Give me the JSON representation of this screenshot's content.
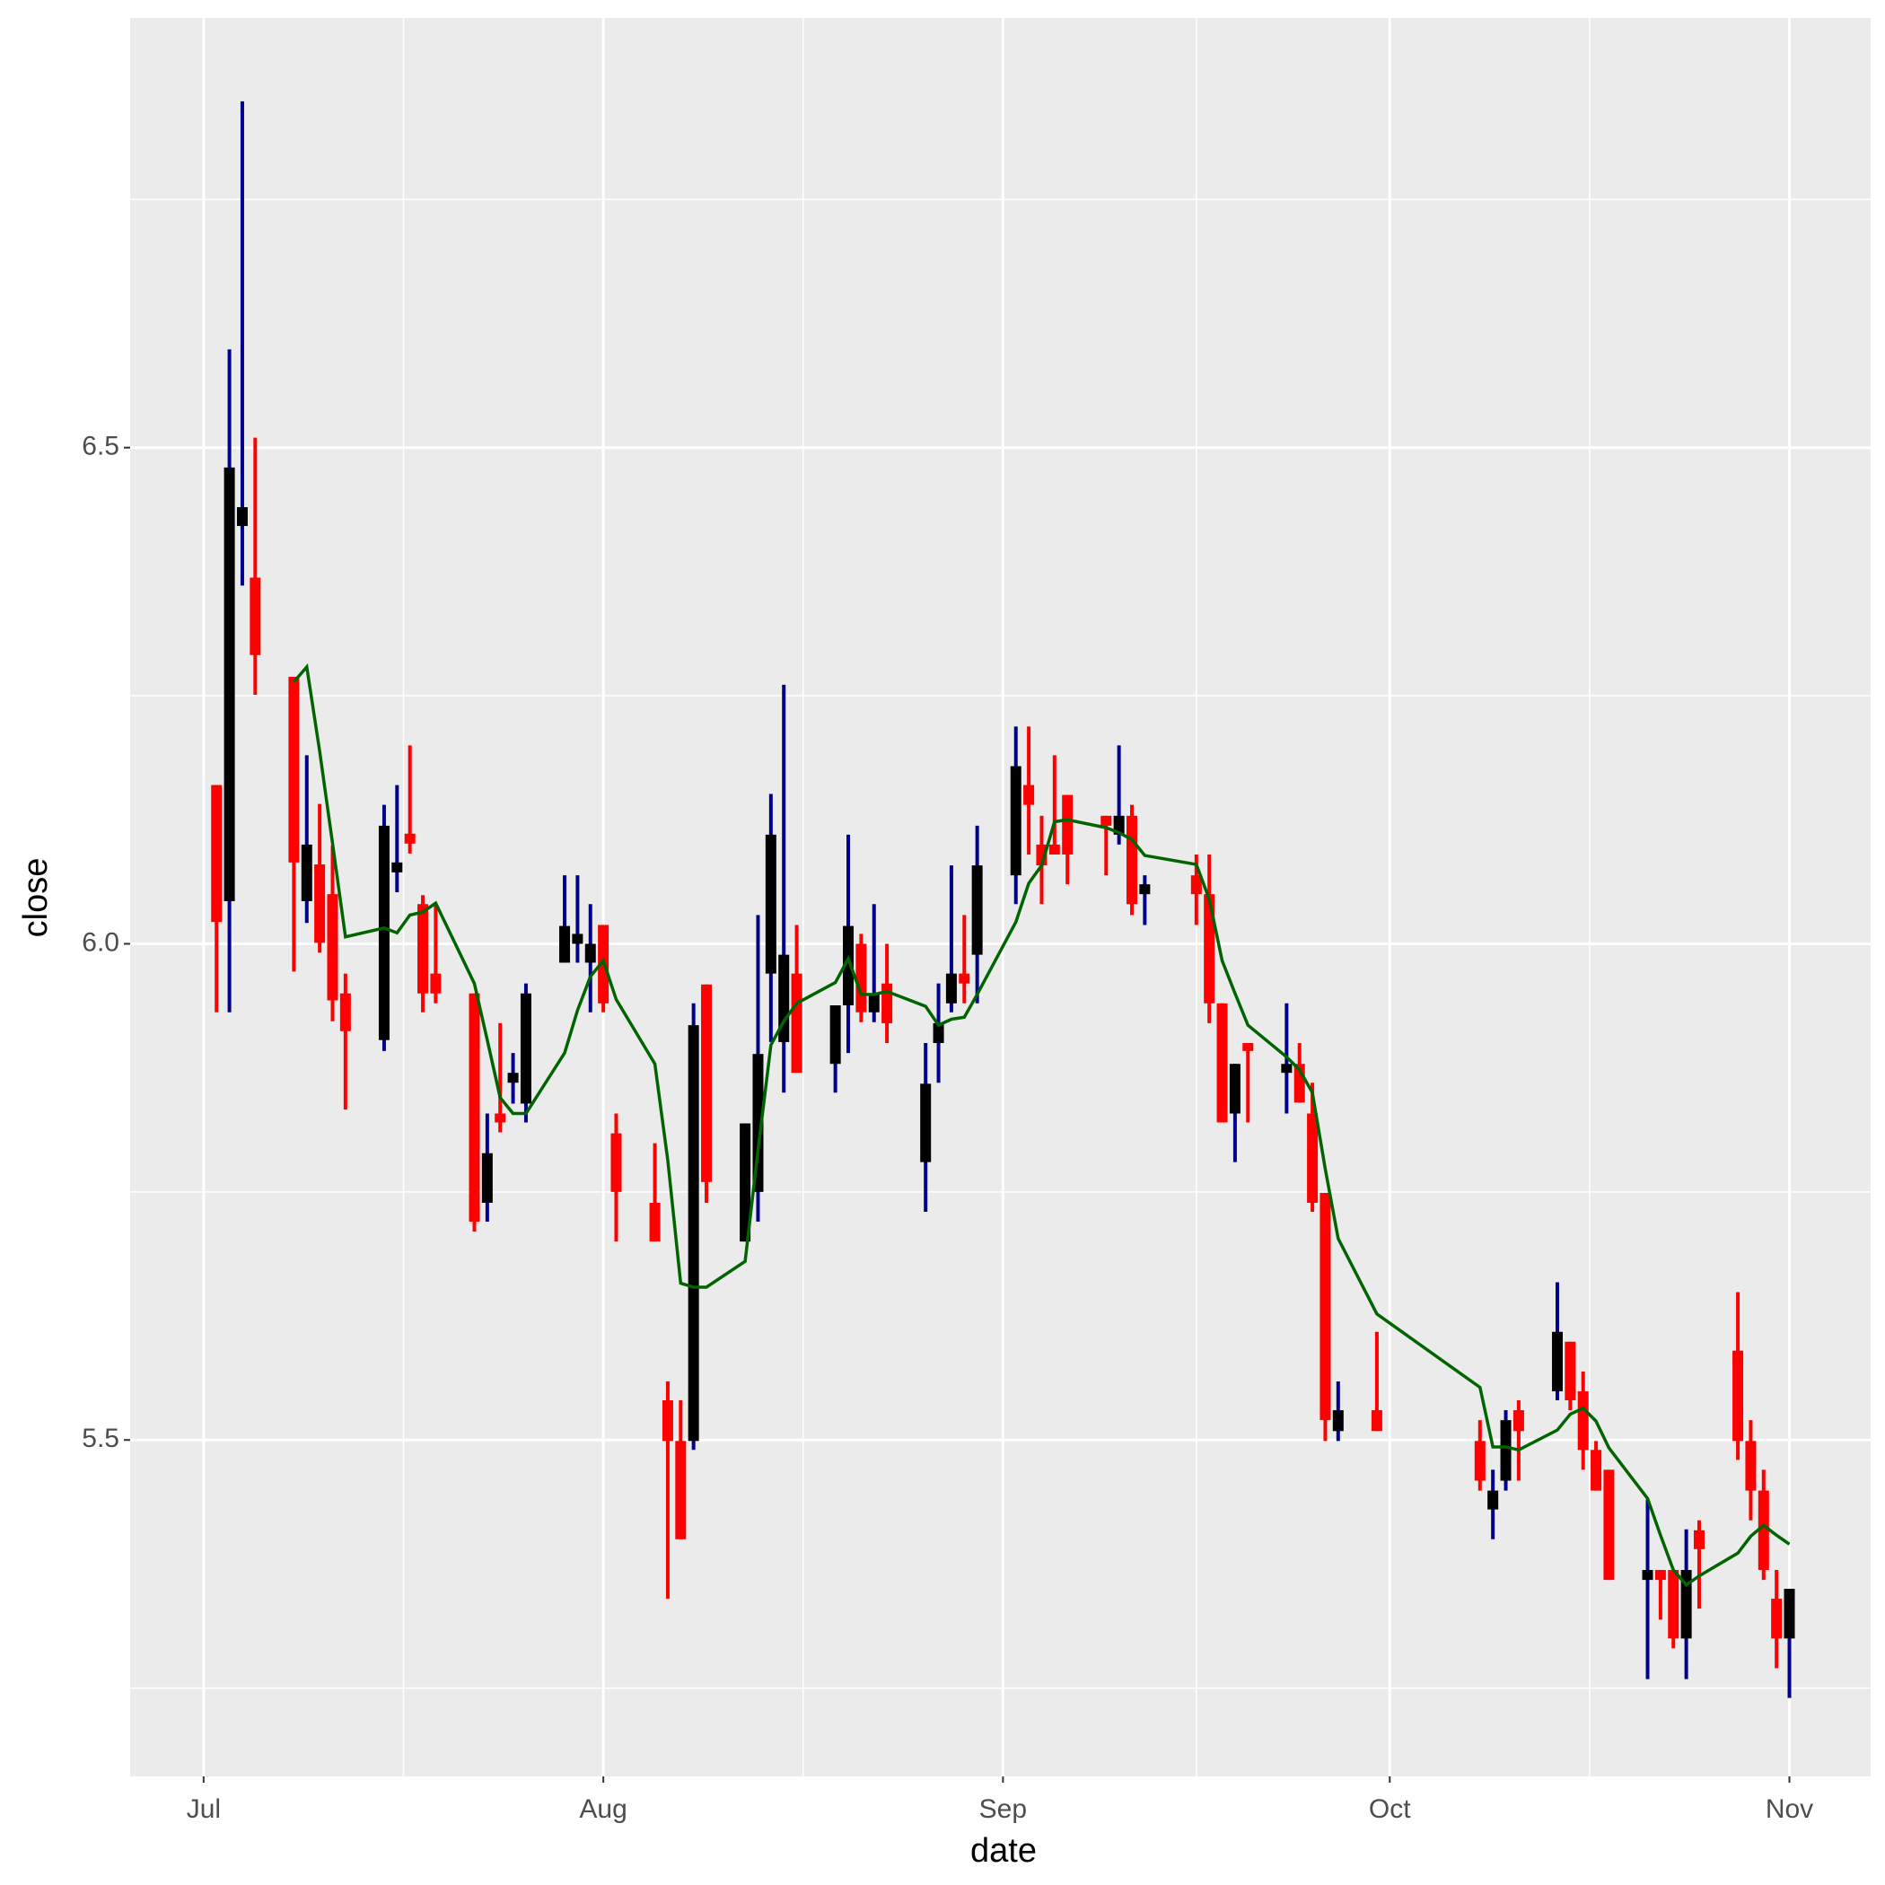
{
  "chart_data": {
    "type": "candlestick",
    "x_label": "date",
    "y_label": "close",
    "x": [
      1,
      2,
      3,
      4,
      7,
      8,
      9,
      10,
      11,
      14,
      15,
      16,
      17,
      18,
      21,
      22,
      23,
      24,
      25,
      28,
      29,
      30,
      31,
      32,
      35,
      36,
      37,
      38,
      39,
      42,
      43,
      44,
      45,
      46,
      49,
      50,
      51,
      52,
      53,
      56,
      57,
      58,
      59,
      60,
      63,
      64,
      65,
      66,
      67,
      70,
      71,
      72,
      73,
      77,
      78,
      79,
      80,
      81,
      84,
      85,
      86,
      87,
      88,
      91,
      99,
      100,
      101,
      102,
      105,
      106,
      107,
      108,
      109,
      112,
      113,
      114,
      115,
      116,
      119,
      120,
      121,
      122,
      123
    ],
    "open": [
      6.16,
      6.043,
      6.421,
      6.369,
      6.269,
      6.043,
      6.08,
      6.05,
      5.95,
      5.903,
      6.072,
      6.111,
      6.04,
      5.97,
      5.95,
      5.739,
      5.829,
      5.86,
      5.839,
      5.981,
      6.0,
      5.981,
      6.019,
      5.809,
      5.739,
      5.54,
      5.499,
      5.499,
      5.959,
      5.7,
      5.75,
      5.97,
      5.901,
      5.97,
      5.879,
      5.938,
      6.0,
      5.931,
      5.96,
      5.78,
      5.9,
      5.94,
      5.97,
      5.989,
      6.069,
      6.16,
      6.1,
      6.1,
      6.15,
      6.129,
      6.11,
      6.129,
      6.05,
      6.069,
      6.05,
      5.94,
      5.829,
      5.9,
      5.87,
      5.879,
      5.829,
      5.749,
      5.509,
      5.53,
      5.499,
      5.43,
      5.459,
      5.53,
      5.549,
      5.599,
      5.549,
      5.49,
      5.47,
      5.359,
      5.369,
      5.369,
      5.3,
      5.409,
      5.59,
      5.499,
      5.449,
      5.34,
      5.3
    ],
    "high": [
      6.16,
      6.599,
      6.849,
      6.51,
      6.269,
      6.19,
      6.141,
      6.099,
      5.97,
      6.14,
      6.16,
      6.2,
      6.049,
      6.04,
      5.95,
      5.829,
      5.92,
      5.89,
      5.96,
      6.069,
      6.069,
      6.04,
      6.019,
      5.829,
      5.799,
      5.559,
      5.54,
      5.94,
      5.959,
      5.819,
      6.029,
      6.151,
      6.261,
      6.019,
      5.938,
      6.11,
      6.01,
      6.04,
      6.0,
      5.9,
      5.96,
      6.079,
      6.029,
      6.119,
      6.219,
      6.219,
      6.129,
      6.19,
      6.15,
      6.129,
      6.2,
      6.14,
      6.069,
      6.09,
      6.09,
      5.94,
      5.879,
      5.9,
      5.94,
      5.9,
      5.86,
      5.749,
      5.559,
      5.609,
      5.52,
      5.47,
      5.53,
      5.54,
      5.659,
      5.599,
      5.569,
      5.499,
      5.47,
      5.44,
      5.369,
      5.369,
      5.41,
      5.419,
      5.649,
      5.52,
      5.47,
      5.369,
      5.35
    ],
    "low": [
      5.931,
      5.931,
      6.361,
      6.251,
      5.972,
      6.021,
      5.991,
      5.922,
      5.833,
      5.892,
      6.052,
      6.091,
      5.931,
      5.94,
      5.71,
      5.72,
      5.81,
      5.839,
      5.82,
      5.981,
      5.981,
      5.931,
      5.931,
      5.7,
      5.7,
      5.34,
      5.4,
      5.49,
      5.739,
      5.7,
      5.72,
      5.901,
      5.85,
      5.87,
      5.85,
      5.89,
      5.921,
      5.921,
      5.9,
      5.73,
      5.86,
      5.931,
      5.94,
      5.94,
      6.04,
      6.09,
      6.04,
      6.09,
      6.06,
      6.069,
      6.1,
      6.029,
      6.019,
      6.019,
      5.92,
      5.82,
      5.78,
      5.82,
      5.829,
      5.84,
      5.73,
      5.499,
      5.499,
      5.509,
      5.449,
      5.4,
      5.449,
      5.459,
      5.54,
      5.53,
      5.47,
      5.449,
      5.359,
      5.259,
      5.319,
      5.29,
      5.259,
      5.33,
      5.48,
      5.419,
      5.359,
      5.27,
      5.24
    ],
    "close": [
      6.022,
      6.48,
      6.44,
      6.291,
      6.082,
      6.1,
      6.001,
      5.943,
      5.912,
      6.119,
      6.082,
      6.101,
      5.95,
      5.95,
      5.72,
      5.789,
      5.82,
      5.87,
      5.95,
      6.018,
      6.01,
      6.0,
      5.94,
      5.75,
      5.7,
      5.499,
      5.4,
      5.918,
      5.76,
      5.819,
      5.889,
      6.11,
      5.989,
      5.87,
      5.938,
      6.018,
      5.931,
      5.95,
      5.92,
      5.859,
      5.92,
      5.97,
      5.96,
      6.079,
      6.179,
      6.14,
      6.079,
      6.09,
      6.09,
      6.119,
      6.129,
      6.04,
      6.06,
      6.05,
      5.94,
      5.82,
      5.879,
      5.892,
      5.879,
      5.84,
      5.739,
      5.52,
      5.53,
      5.509,
      5.459,
      5.449,
      5.52,
      5.509,
      5.609,
      5.54,
      5.49,
      5.449,
      5.359,
      5.369,
      5.359,
      5.3,
      5.369,
      5.39,
      5.499,
      5.449,
      5.369,
      5.3,
      5.35
    ],
    "ma": [
      null,
      null,
      null,
      null,
      6.264,
      6.279,
      6.194,
      6.101,
      6.007,
      6.016,
      6.011,
      6.029,
      6.032,
      6.041,
      5.96,
      5.903,
      5.845,
      5.829,
      5.829,
      5.89,
      5.933,
      5.967,
      5.983,
      5.944,
      5.879,
      5.782,
      5.658,
      5.654,
      5.654,
      5.68,
      5.792,
      5.898,
      5.922,
      5.94,
      5.961,
      5.985,
      5.949,
      5.949,
      5.952,
      5.937,
      5.918,
      5.924,
      5.926,
      5.949,
      6.022,
      6.061,
      6.079,
      6.123,
      6.125,
      6.117,
      6.112,
      6.105,
      6.089,
      6.08,
      6.045,
      5.983,
      5.95,
      5.918,
      5.886,
      5.873,
      5.85,
      5.773,
      5.703,
      5.627,
      5.553,
      5.493,
      5.493,
      5.49,
      5.51,
      5.526,
      5.532,
      5.519,
      5.492,
      5.441,
      5.404,
      5.369,
      5.354,
      5.363,
      5.386,
      5.403,
      5.414,
      5.404,
      5.395
    ],
    "up_color": "#000000",
    "up_wick_color": "#00008b",
    "down_color": "#ff0000",
    "ma_color": "#006400",
    "xlim": [
      -5.7,
      129.3
    ],
    "ylim": [
      5.161,
      6.933
    ],
    "xticks": [
      {
        "value": 0,
        "label": "Jul"
      },
      {
        "value": 31,
        "label": "Aug"
      },
      {
        "value": 62,
        "label": "Sep"
      },
      {
        "value": 92,
        "label": "Oct"
      },
      {
        "value": 123,
        "label": "Nov"
      }
    ],
    "yticks": [
      5.5,
      {
        "value": 6,
        "label": "6.0"
      },
      6.5
    ],
    "x_minor_ticks": [
      15.5,
      46.5,
      77,
      107.5
    ],
    "y_minor_ticks": [
      5.25,
      5.75,
      6.25,
      6.75
    ],
    "grid": true
  }
}
